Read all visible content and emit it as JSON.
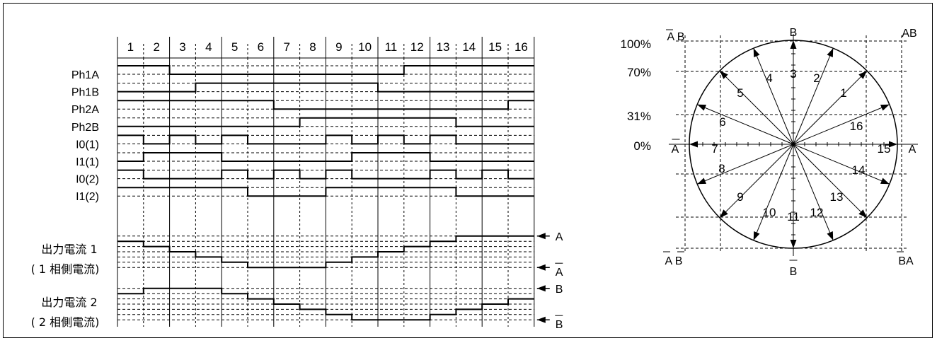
{
  "steps": [
    "1",
    "2",
    "3",
    "4",
    "5",
    "6",
    "7",
    "8",
    "9",
    "10",
    "11",
    "12",
    "13",
    "14",
    "15",
    "16"
  ],
  "signals": [
    {
      "name": "Ph1A",
      "levels": [
        1,
        1,
        0,
        0,
        0,
        0,
        0,
        0,
        0,
        0,
        0,
        1,
        1,
        1,
        1,
        1
      ]
    },
    {
      "name": "Ph1B",
      "levels": [
        0,
        0,
        0,
        1,
        1,
        1,
        1,
        1,
        1,
        1,
        0,
        0,
        0,
        0,
        0,
        0
      ]
    },
    {
      "name": "Ph2A",
      "levels": [
        1,
        1,
        1,
        1,
        1,
        1,
        0,
        0,
        0,
        0,
        0,
        0,
        0,
        0,
        0,
        1
      ]
    },
    {
      "name": "Ph2B",
      "levels": [
        0,
        0,
        0,
        0,
        0,
        0,
        0,
        1,
        1,
        1,
        1,
        1,
        1,
        0,
        0,
        0
      ]
    },
    {
      "name": "I0(1)",
      "levels": [
        1,
        0,
        1,
        0,
        1,
        0,
        0,
        0,
        1,
        0,
        1,
        0,
        1,
        0,
        0,
        0
      ]
    },
    {
      "name": "I1(1)",
      "levels": [
        0,
        1,
        1,
        1,
        0,
        0,
        0,
        0,
        0,
        1,
        1,
        1,
        0,
        0,
        0,
        0
      ]
    },
    {
      "name": "I0(2)",
      "levels": [
        1,
        0,
        0,
        0,
        1,
        0,
        1,
        0,
        1,
        0,
        0,
        0,
        1,
        0,
        1,
        0
      ]
    },
    {
      "name": "I1(2)",
      "levels": [
        1,
        1,
        1,
        1,
        1,
        0,
        0,
        0,
        1,
        1,
        1,
        1,
        1,
        0,
        0,
        0
      ]
    }
  ],
  "current1": {
    "label_line1": "出力電流 1",
    "label_line2": "( 1 相側電流)",
    "pos_label": "A",
    "neg_label": "A",
    "levels": [
      2,
      1,
      0,
      -1,
      -2,
      -3,
      -3,
      -3,
      -2,
      -1,
      0,
      1,
      2,
      3,
      3,
      3
    ]
  },
  "current2": {
    "label_line1": "出力電流 2",
    "label_line2": "( 2 相側電流)",
    "pos_label": "B",
    "neg_label": "B",
    "levels": [
      2,
      3,
      3,
      3,
      2,
      1,
      0,
      -1,
      -2,
      -3,
      -3,
      -3,
      -2,
      -1,
      0,
      1
    ]
  },
  "phase_diagram": {
    "percent_labels": [
      "100%",
      "70%",
      "31%",
      "0%"
    ],
    "vector_numbers": [
      "1",
      "2",
      "3",
      "4",
      "5",
      "6",
      "7",
      "8",
      "9",
      "10",
      "11",
      "12",
      "13",
      "14",
      "15",
      "16"
    ],
    "axis_labels": {
      "top": "B",
      "top_left": "A B",
      "top_right": "AB",
      "left": "A",
      "right": "A",
      "bottom": "B",
      "bottom_left": "A B",
      "bottom_right": "BA"
    }
  }
}
